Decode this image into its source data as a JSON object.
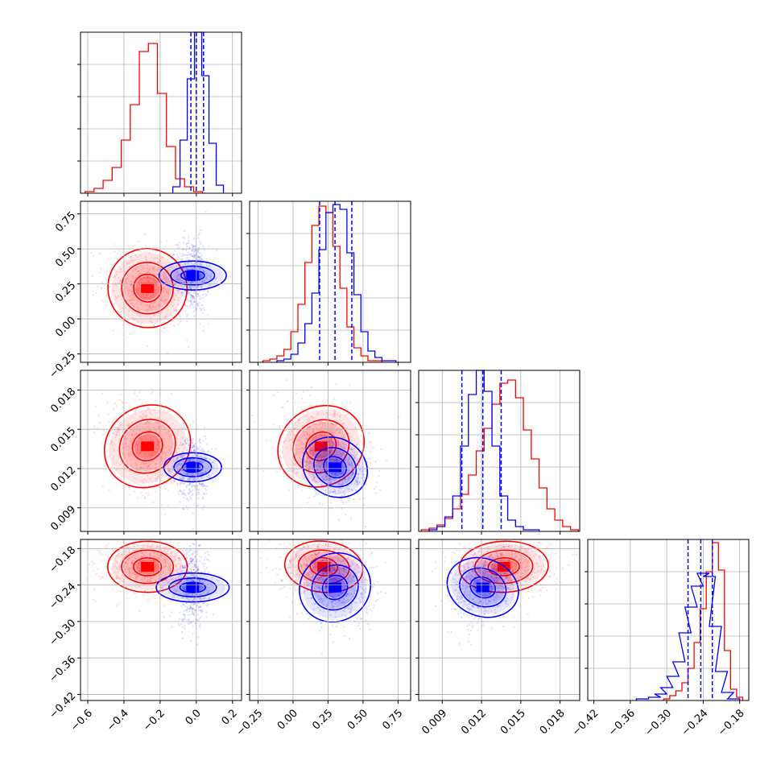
{
  "colors": {
    "red": "#ff0000",
    "blue": "#0000ff",
    "grid": "#b0b0b0",
    "frame": "#000000"
  },
  "chart_data": {
    "type": "corner",
    "grid": true,
    "series": [
      {
        "color": "red"
      },
      {
        "color": "blue"
      }
    ],
    "parameters": [
      {
        "range": [
          -0.64,
          0.25
        ],
        "ticks": [
          -0.6,
          -0.4,
          -0.2,
          0.0,
          0.2
        ],
        "tick_labels": [
          "−0.6",
          "−0.4",
          "−0.2",
          "0.0",
          "0.2"
        ],
        "quantiles_blue": [
          -0.03,
          0.0,
          0.04
        ],
        "marginal": {
          "red": {
            "x": [
              -0.59,
              -0.54,
              -0.49,
              -0.44,
              -0.39,
              -0.34,
              -0.29,
              -0.24,
              -0.19,
              -0.14,
              -0.09,
              -0.04,
              0.01
            ],
            "y": [
              0.01,
              0.03,
              0.08,
              0.16,
              0.33,
              0.55,
              0.88,
              0.93,
              0.62,
              0.29,
              0.09,
              0.04,
              0.01
            ]
          },
          "blue": {
            "x": [
              -0.11,
              -0.07,
              -0.03,
              0.01,
              0.05,
              0.09,
              0.13
            ],
            "y": [
              0.04,
              0.33,
              0.71,
              1.0,
              0.73,
              0.31,
              0.05
            ]
          }
        }
      },
      {
        "range": [
          -0.31,
          0.84
        ],
        "ticks": [
          -0.25,
          0.0,
          0.25,
          0.5,
          0.75
        ],
        "tick_labels": [
          "−0.25",
          "0.00",
          "0.25",
          "0.50",
          "0.75"
        ],
        "quantiles_blue": [
          0.19,
          0.3,
          0.42
        ],
        "marginal": {
          "red": {
            "x": [
              -0.19,
              -0.14,
              -0.09,
              -0.04,
              0.01,
              0.06,
              0.11,
              0.16,
              0.21,
              0.26,
              0.31,
              0.36,
              0.41,
              0.46,
              0.51,
              0.56,
              0.61
            ],
            "y": [
              0.01,
              0.02,
              0.04,
              0.08,
              0.19,
              0.36,
              0.62,
              0.85,
              0.97,
              0.93,
              0.72,
              0.46,
              0.22,
              0.09,
              0.04,
              0.01,
              0.01
            ]
          },
          "blue": {
            "x": [
              -0.09,
              -0.04,
              0.01,
              0.06,
              0.11,
              0.16,
              0.21,
              0.26,
              0.31,
              0.36,
              0.41,
              0.46,
              0.51,
              0.56,
              0.61,
              0.66,
              0.71
            ],
            "y": [
              0.01,
              0.02,
              0.05,
              0.12,
              0.24,
              0.43,
              0.7,
              0.93,
              0.98,
              0.95,
              0.68,
              0.42,
              0.19,
              0.07,
              0.03,
              0.01,
              0.01
            ]
          }
        }
      },
      {
        "range": [
          0.0072,
          0.0195
        ],
        "ticks": [
          0.009,
          0.012,
          0.015,
          0.018
        ],
        "tick_labels": [
          "0.009",
          "0.012",
          "0.015",
          "0.018"
        ],
        "quantiles_blue": [
          0.0105,
          0.0121,
          0.0135
        ],
        "marginal": {
          "red": {
            "x": [
              0.0077,
              0.0083,
              0.0089,
              0.0095,
              0.0101,
              0.0107,
              0.0113,
              0.0119,
              0.0125,
              0.0131,
              0.0137,
              0.0143,
              0.0149,
              0.0155,
              0.0161,
              0.0167,
              0.0173,
              0.0179,
              0.0185,
              0.0191
            ],
            "y": [
              0.01,
              0.02,
              0.04,
              0.08,
              0.14,
              0.23,
              0.35,
              0.5,
              0.64,
              0.79,
              0.92,
              0.94,
              0.83,
              0.63,
              0.45,
              0.27,
              0.14,
              0.07,
              0.03,
              0.01
            ]
          },
          "blue": {
            "x": [
              0.0083,
              0.0089,
              0.0095,
              0.0101,
              0.0107,
              0.0113,
              0.0119,
              0.0125,
              0.0131,
              0.0137,
              0.0143,
              0.0149,
              0.0155,
              0.0161
            ],
            "y": [
              0.01,
              0.03,
              0.09,
              0.22,
              0.53,
              0.85,
              1.0,
              0.87,
              0.53,
              0.22,
              0.07,
              0.03,
              0.01,
              0.01
            ]
          }
        }
      },
      {
        "range": [
          -0.43,
          -0.165
        ],
        "ticks": [
          -0.42,
          -0.36,
          -0.3,
          -0.24,
          -0.18
        ],
        "tick_labels": [
          "−0.42",
          "−0.36",
          "−0.30",
          "−0.24",
          "−0.18"
        ],
        "quantiles_blue": [
          -0.265,
          -0.244,
          -0.225
        ],
        "marginal": {
          "red": {
            "x": [
              -0.3,
              -0.29,
              -0.28,
              -0.27,
              -0.26,
              -0.25,
              -0.24,
              -0.23,
              -0.22,
              -0.21,
              -0.2,
              -0.19,
              -0.18
            ],
            "y": [
              0.01,
              0.03,
              0.06,
              0.11,
              0.2,
              0.36,
              0.57,
              0.8,
              0.98,
              0.81,
              0.31,
              0.07,
              0.02
            ]
          },
          "blue": {
            "x": [
              -0.34,
              -0.32,
              -0.31,
              -0.3,
              -0.29,
              -0.28,
              -0.27,
              -0.26,
              -0.25,
              -0.24,
              -0.23,
              -0.22,
              -0.21,
              -0.2,
              -0.19
            ],
            "y": [
              0.01,
              0.02,
              0.04,
              0.08,
              0.15,
              0.24,
              0.42,
              0.58,
              0.71,
              0.79,
              0.77,
              0.46,
              0.18,
              0.05,
              0.01
            ]
          }
        }
      }
    ],
    "pairs": [
      {
        "row": 1,
        "col": 0,
        "red": {
          "mean": [
            -0.27,
            0.22
          ],
          "std": [
            0.11,
            0.14
          ],
          "rho": -0.2
        },
        "blue": {
          "mean": [
            -0.02,
            0.31
          ],
          "std": [
            0.04,
            0.12
          ],
          "rho": 0.0
        }
      },
      {
        "row": 2,
        "col": 0,
        "red": {
          "mean": [
            -0.27,
            0.0137
          ],
          "std": [
            0.11,
            0.0017
          ],
          "rho": -0.3
        },
        "blue": {
          "mean": [
            -0.02,
            0.0121
          ],
          "std": [
            0.04,
            0.0011
          ],
          "rho": 0.0
        }
      },
      {
        "row": 2,
        "col": 1,
        "red": {
          "mean": [
            0.2,
            0.0137
          ],
          "std": [
            0.14,
            0.0017
          ],
          "rho": -0.25
        },
        "blue": {
          "mean": [
            0.3,
            0.0121
          ],
          "std": [
            0.12,
            0.0011
          ],
          "rho": -0.3
        }
      },
      {
        "row": 3,
        "col": 0,
        "red": {
          "mean": [
            -0.27,
            -0.21
          ],
          "std": [
            0.11,
            0.021
          ],
          "rho": 0.0
        },
        "blue": {
          "mean": [
            -0.02,
            -0.244
          ],
          "std": [
            0.04,
            0.03
          ],
          "rho": 0.0
        }
      },
      {
        "row": 3,
        "col": 1,
        "red": {
          "mean": [
            0.22,
            -0.21
          ],
          "std": [
            0.14,
            0.021
          ],
          "rho": -0.1
        },
        "blue": {
          "mean": [
            0.3,
            -0.244
          ],
          "std": [
            0.12,
            0.03
          ],
          "rho": -0.2
        }
      },
      {
        "row": 3,
        "col": 2,
        "red": {
          "mean": [
            0.0137,
            -0.21
          ],
          "std": [
            0.0017,
            0.021
          ],
          "rho": 0.05
        },
        "blue": {
          "mean": [
            0.0121,
            -0.244
          ],
          "std": [
            0.0011,
            0.03
          ],
          "rho": 0.2
        }
      }
    ]
  }
}
